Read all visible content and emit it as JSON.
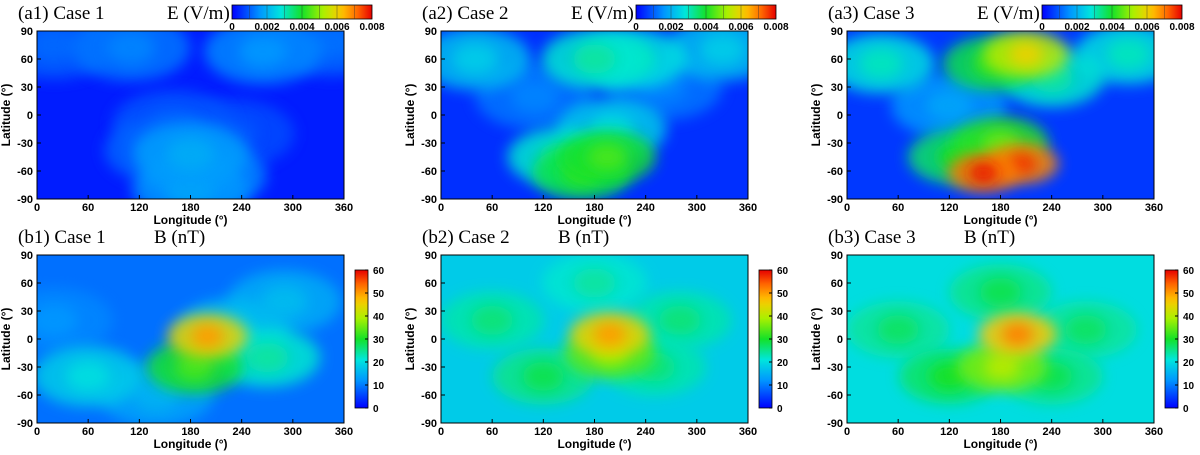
{
  "chart_data": [
    {
      "type": "heatmap",
      "panel_label": "(a1) Case 1",
      "quantity": "E (V/m)",
      "xlabel": "Longitude (°)",
      "ylabel": "Latitude (°)",
      "x_ticks": [
        "0",
        "60",
        "120",
        "180",
        "240",
        "300",
        "360"
      ],
      "y_ticks": [
        "90",
        "60",
        "30",
        "0",
        "-30",
        "-60",
        "-90"
      ],
      "xlim": [
        0,
        360
      ],
      "ylim": [
        -90,
        90
      ],
      "colorbar": {
        "orientation": "horizontal",
        "range": [
          0,
          0.008
        ],
        "ticks": [
          "0",
          "0.002",
          "0.004",
          "0.006",
          "0.008"
        ]
      },
      "background": 0.0003,
      "hotspots": [
        {
          "lon": 200,
          "lat": -65,
          "value": 0.0016
        },
        {
          "lon": 180,
          "lat": -42,
          "value": 0.0019
        },
        {
          "lon": 150,
          "lat": -38,
          "value": 0.0012
        },
        {
          "lon": 230,
          "lat": -20,
          "value": 0.0009
        },
        {
          "lon": 180,
          "lat": -79,
          "value": 0.0018
        },
        {
          "lon": 110,
          "lat": 72,
          "value": 0.0014
        },
        {
          "lon": 265,
          "lat": 68,
          "value": 0.0016
        },
        {
          "lon": 345,
          "lat": 78,
          "value": 0.0012
        },
        {
          "lon": 20,
          "lat": 75,
          "value": 0.0011
        },
        {
          "lon": 160,
          "lat": -10,
          "value": 0.001
        }
      ]
    },
    {
      "type": "heatmap",
      "panel_label": "(a2) Case 2",
      "quantity": "E (V/m)",
      "xlabel": "Longitude (°)",
      "ylabel": "Latitude (°)",
      "x_ticks": [
        "0",
        "60",
        "120",
        "180",
        "240",
        "300",
        "360"
      ],
      "y_ticks": [
        "90",
        "60",
        "30",
        "0",
        "-30",
        "-60",
        "-90"
      ],
      "xlim": [
        0,
        360
      ],
      "ylim": [
        -90,
        90
      ],
      "colorbar": {
        "orientation": "horizontal",
        "range": [
          0,
          0.008
        ],
        "ticks": [
          "0",
          "0.002",
          "0.004",
          "0.006",
          "0.008"
        ]
      },
      "background": 0.0005,
      "hotspots": [
        {
          "lon": 180,
          "lat": 60,
          "value": 0.0032
        },
        {
          "lon": 165,
          "lat": -62,
          "value": 0.0042
        },
        {
          "lon": 195,
          "lat": -45,
          "value": 0.0044
        },
        {
          "lon": 200,
          "lat": -15,
          "value": 0.0026
        },
        {
          "lon": 140,
          "lat": -45,
          "value": 0.0032
        },
        {
          "lon": 225,
          "lat": 60,
          "value": 0.003
        },
        {
          "lon": 40,
          "lat": 60,
          "value": 0.0024
        },
        {
          "lon": 330,
          "lat": 70,
          "value": 0.0024
        },
        {
          "lon": 110,
          "lat": 20,
          "value": 0.0014
        },
        {
          "lon": 260,
          "lat": 30,
          "value": 0.0014
        }
      ]
    },
    {
      "type": "heatmap",
      "panel_label": "(a3) Case 3",
      "quantity": "E (V/m)",
      "xlabel": "Longitude (°)",
      "ylabel": "Latitude (°)",
      "x_ticks": [
        "0",
        "60",
        "120",
        "180",
        "240",
        "300",
        "360"
      ],
      "y_ticks": [
        "90",
        "60",
        "30",
        "0",
        "-30",
        "-60",
        "-90"
      ],
      "xlim": [
        0,
        360
      ],
      "ylim": [
        -90,
        90
      ],
      "colorbar": {
        "orientation": "horizontal",
        "range": [
          0,
          0.008
        ],
        "ticks": [
          "0",
          "0.002",
          "0.004",
          "0.006",
          "0.008"
        ]
      },
      "background": 0.0006,
      "hotspots": [
        {
          "lon": 210,
          "lat": 65,
          "value": 0.006
        },
        {
          "lon": 170,
          "lat": 55,
          "value": 0.0042
        },
        {
          "lon": 160,
          "lat": -62,
          "value": 0.0078
        },
        {
          "lon": 205,
          "lat": -52,
          "value": 0.0076
        },
        {
          "lon": 180,
          "lat": -30,
          "value": 0.0046
        },
        {
          "lon": 130,
          "lat": -45,
          "value": 0.004
        },
        {
          "lon": 240,
          "lat": 40,
          "value": 0.0032
        },
        {
          "lon": 40,
          "lat": 55,
          "value": 0.003
        },
        {
          "lon": 330,
          "lat": 65,
          "value": 0.003
        },
        {
          "lon": 120,
          "lat": 10,
          "value": 0.0018
        }
      ]
    },
    {
      "type": "heatmap",
      "panel_label": "(b1) Case 1",
      "quantity": "B (nT)",
      "xlabel": "Longitude (°)",
      "ylabel": "Latitude (°)",
      "x_ticks": [
        "0",
        "60",
        "120",
        "180",
        "240",
        "300",
        "360"
      ],
      "y_ticks": [
        "90",
        "60",
        "30",
        "0",
        "-30",
        "-60",
        "-90"
      ],
      "xlim": [
        0,
        360
      ],
      "ylim": [
        -90,
        90
      ],
      "colorbar": {
        "orientation": "vertical",
        "range": [
          0,
          60
        ],
        "ticks": [
          "60",
          "50",
          "40",
          "30",
          "20",
          "10",
          "0"
        ]
      },
      "background": 9,
      "hotspots": [
        {
          "lon": 200,
          "lat": 3,
          "value": 50
        },
        {
          "lon": 185,
          "lat": -30,
          "value": 33
        },
        {
          "lon": 60,
          "lat": -40,
          "value": 20
        },
        {
          "lon": 270,
          "lat": -20,
          "value": 24
        },
        {
          "lon": 290,
          "lat": 40,
          "value": 16
        },
        {
          "lon": 140,
          "lat": -60,
          "value": 15
        },
        {
          "lon": 230,
          "lat": 10,
          "value": 18
        },
        {
          "lon": 20,
          "lat": 20,
          "value": 12
        }
      ]
    },
    {
      "type": "heatmap",
      "panel_label": "(b2) Case 2",
      "quantity": "B (nT)",
      "xlabel": "Longitude (°)",
      "ylabel": "Latitude (°)",
      "x_ticks": [
        "0",
        "60",
        "120",
        "180",
        "240",
        "300",
        "360"
      ],
      "y_ticks": [
        "90",
        "60",
        "30",
        "0",
        "-30",
        "-60",
        "-90"
      ],
      "xlim": [
        0,
        360
      ],
      "ylim": [
        -90,
        90
      ],
      "colorbar": {
        "orientation": "vertical",
        "range": [
          0,
          60
        ],
        "ticks": [
          "60",
          "50",
          "40",
          "30",
          "20",
          "10",
          "0"
        ]
      },
      "background": 18,
      "hotspots": [
        {
          "lon": 198,
          "lat": 5,
          "value": 50
        },
        {
          "lon": 198,
          "lat": -15,
          "value": 38
        },
        {
          "lon": 120,
          "lat": -40,
          "value": 28
        },
        {
          "lon": 60,
          "lat": 20,
          "value": 26
        },
        {
          "lon": 280,
          "lat": 20,
          "value": 26
        },
        {
          "lon": 250,
          "lat": -30,
          "value": 26
        },
        {
          "lon": 180,
          "lat": 60,
          "value": 24
        }
      ]
    },
    {
      "type": "heatmap",
      "panel_label": "(b3) Case 3",
      "quantity": "B (nT)",
      "xlabel": "Longitude (°)",
      "ylabel": "Latitude (°)",
      "x_ticks": [
        "0",
        "60",
        "120",
        "180",
        "240",
        "300",
        "360"
      ],
      "y_ticks": [
        "90",
        "60",
        "30",
        "0",
        "-30",
        "-60",
        "-90"
      ],
      "xlim": [
        0,
        360
      ],
      "ylim": [
        -90,
        90
      ],
      "colorbar": {
        "orientation": "vertical",
        "range": [
          0,
          60
        ],
        "ticks": [
          "60",
          "50",
          "40",
          "30",
          "20",
          "10",
          "0"
        ]
      },
      "background": 20,
      "hotspots": [
        {
          "lon": 200,
          "lat": 5,
          "value": 52
        },
        {
          "lon": 182,
          "lat": -30,
          "value": 40
        },
        {
          "lon": 120,
          "lat": -40,
          "value": 30
        },
        {
          "lon": 180,
          "lat": 50,
          "value": 28
        },
        {
          "lon": 60,
          "lat": 10,
          "value": 27
        },
        {
          "lon": 280,
          "lat": 10,
          "value": 27
        },
        {
          "lon": 240,
          "lat": -40,
          "value": 28
        }
      ]
    }
  ]
}
